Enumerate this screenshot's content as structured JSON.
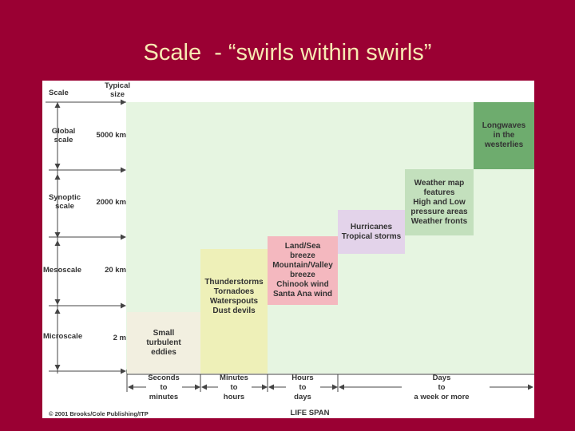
{
  "slide": {
    "title": "Scale  - “swirls within swirls”"
  },
  "diagram": {
    "header_scale": "Scale",
    "header_typical_size": "Typical\nsize",
    "scales": [
      {
        "name": "Global\nscale",
        "size": "5000 km"
      },
      {
        "name": "Synoptic\nscale",
        "size": "2000 km"
      },
      {
        "name": "Mesoscale",
        "size": "20 km"
      },
      {
        "name": "Microscale",
        "size": "2 m"
      }
    ],
    "boxes": [
      {
        "id": "micro",
        "text": "Small\nturbulent\neddies",
        "color": "#f2efe0"
      },
      {
        "id": "thunder",
        "text": "Thunderstorms\nTornadoes\nWaterspouts\nDust devils",
        "color": "#eef0b8"
      },
      {
        "id": "landsea",
        "text": "Land/Sea\nbreeze\nMountain/Valley\nbreeze\nChinook wind\nSanta Ana wind",
        "color": "#f4b8bf"
      },
      {
        "id": "hurricanes",
        "text": "Hurricanes\nTropical storms",
        "color": "#e3d3ea"
      },
      {
        "id": "weathermap",
        "text": "Weather map\nfeatures\nHigh and Low\npressure areas\nWeather fronts",
        "color": "#c3e0bd"
      },
      {
        "id": "longwaves",
        "text": "Longwaves\nin the\nwesterlies",
        "color": "#6eac6e"
      }
    ],
    "lifespans": [
      "Seconds\nto\nminutes",
      "Minutes\nto\nhours",
      "Hours\nto\ndays",
      "Days\nto\na week or more"
    ],
    "xaxis_label": "LIFE SPAN",
    "copyright": "© 2001 Brooks/Cole Publishing/ITP"
  }
}
